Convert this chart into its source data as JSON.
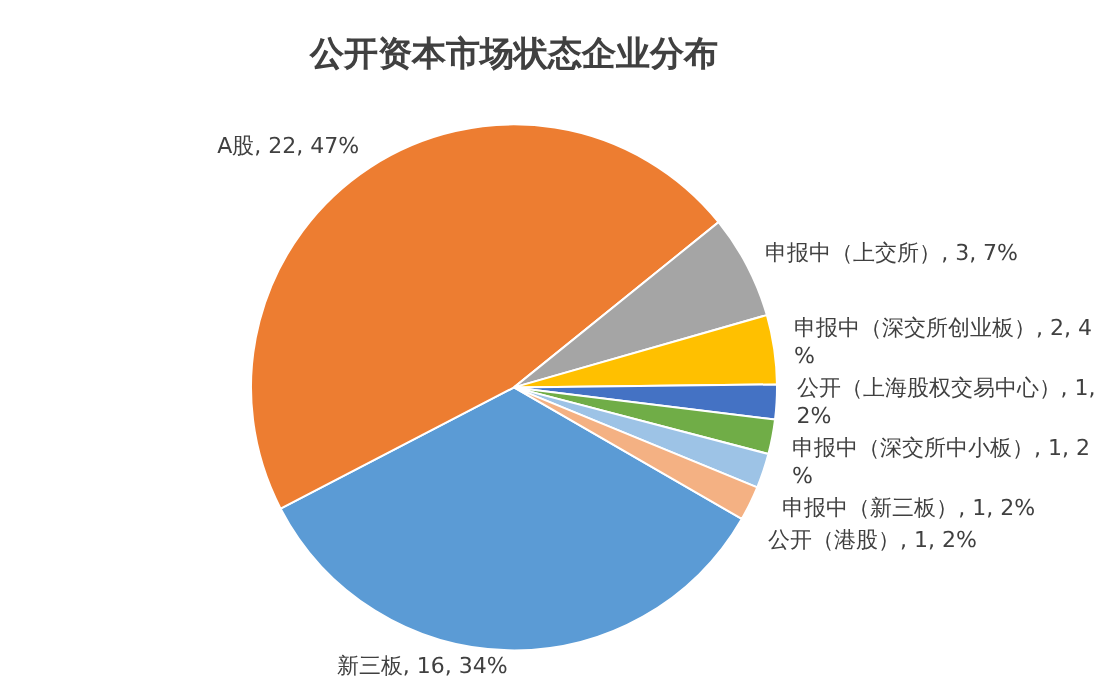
{
  "chart_data": {
    "type": "pie",
    "title": "公开资本市场状态企业分布",
    "categories": [
      "新三板",
      "A股",
      "申报中（上交所）",
      "申报中（深交所创业板）",
      "公开（上海股权交易中心）",
      "申报中（深交所中小板）",
      "申报中（新三板）",
      "公开（港股）"
    ],
    "values": [
      16,
      22,
      3,
      2,
      1,
      1,
      1,
      1
    ],
    "value_labels": [
      "16, 34%",
      "22, 47%",
      "3, 7%",
      "2, 4%",
      "1, 2%",
      "1, 2%",
      "1, 2%",
      "1, 2%"
    ],
    "colors": [
      "#5b9bd5",
      "#ed7d31",
      "#a5a5a5",
      "#ffc000",
      "#4472c4",
      "#70ad47",
      "#9dc3e6",
      "#f4b183"
    ],
    "legend": false
  }
}
